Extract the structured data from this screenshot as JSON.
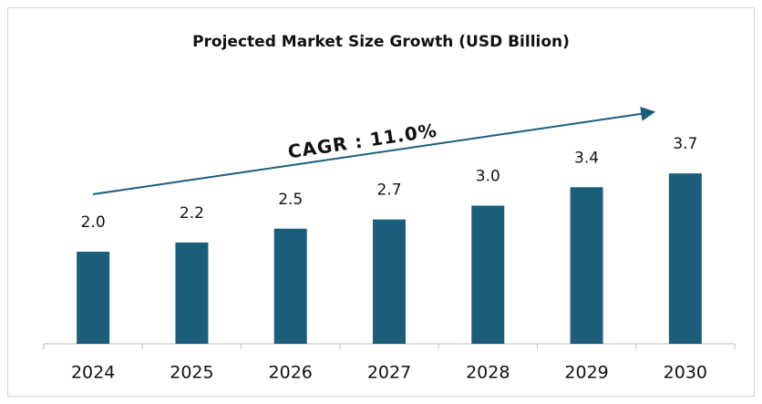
{
  "chart_data": {
    "type": "bar",
    "title": "Projected Market Size Growth (USD Billion)",
    "categories": [
      "2024",
      "2025",
      "2026",
      "2027",
      "2028",
      "2029",
      "2030"
    ],
    "values": [
      2.0,
      2.2,
      2.5,
      2.7,
      3.0,
      3.4,
      3.7
    ],
    "value_labels": [
      "2.0",
      "2.2",
      "2.5",
      "2.7",
      "3.0",
      "3.4",
      "3.7"
    ],
    "color": "#1b5e7b",
    "annotation": "CAGR : 11.0%"
  }
}
